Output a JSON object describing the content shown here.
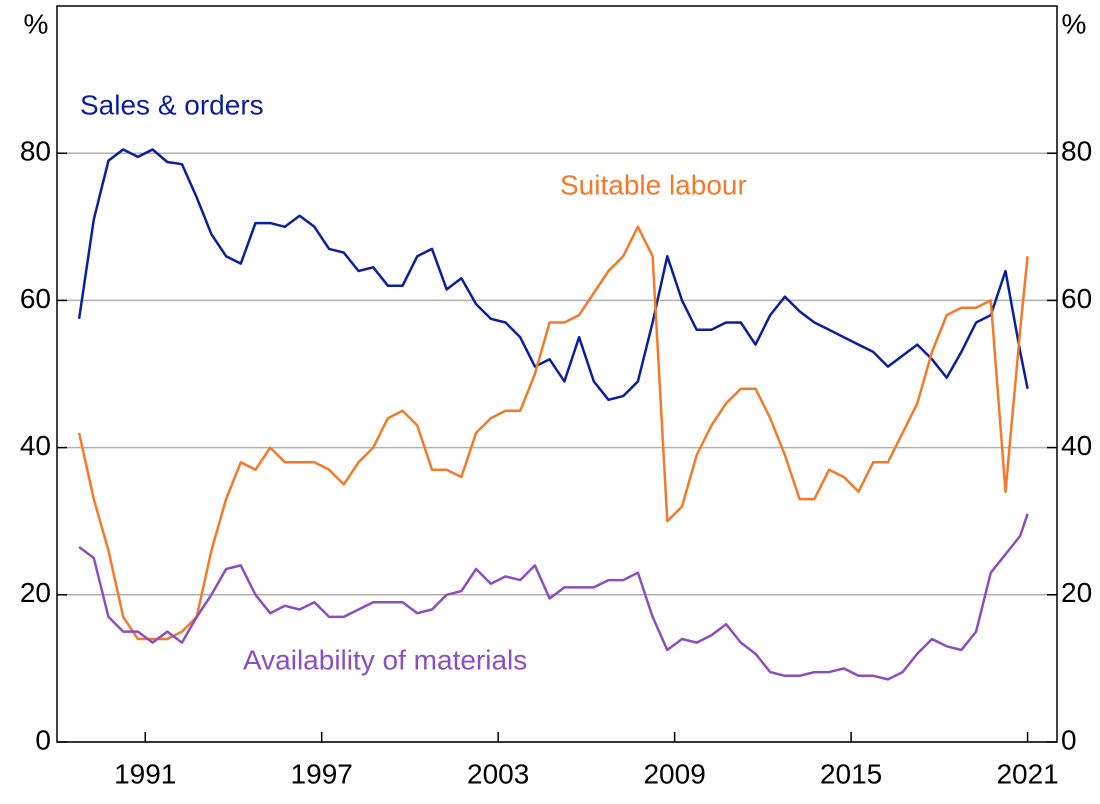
{
  "chart_data": {
    "type": "line",
    "y_label": "%",
    "y2_label": "%",
    "x": [
      1988.75,
      1989.25,
      1989.75,
      1990.25,
      1990.75,
      1991.25,
      1991.75,
      1992.25,
      1992.75,
      1993.25,
      1993.75,
      1994.25,
      1994.75,
      1995.25,
      1995.75,
      1996.25,
      1996.75,
      1997.25,
      1997.75,
      1998.25,
      1998.75,
      1999.25,
      1999.75,
      2000.25,
      2000.75,
      2001.25,
      2001.75,
      2002.25,
      2002.75,
      2003.25,
      2003.75,
      2004.25,
      2004.75,
      2005.25,
      2005.75,
      2006.25,
      2006.75,
      2007.25,
      2007.75,
      2008.25,
      2008.75,
      2009.25,
      2009.75,
      2010.25,
      2010.75,
      2011.25,
      2011.75,
      2012.25,
      2012.75,
      2013.25,
      2013.75,
      2014.25,
      2014.75,
      2015.25,
      2015.75,
      2016.25,
      2016.75,
      2017.25,
      2017.75,
      2018.25,
      2018.75,
      2019.25,
      2019.75,
      2020.25,
      2020.75,
      2021.0
    ],
    "series": [
      {
        "name": "Sales & orders",
        "color": "#0a1f9e",
        "values": [
          57.5,
          71,
          79,
          80.5,
          79.5,
          80.5,
          78.8,
          78.5,
          74,
          69,
          66,
          65,
          70.5,
          70.5,
          70,
          71.5,
          70,
          67,
          66.5,
          64,
          64.5,
          62,
          62,
          66,
          67,
          61.5,
          63,
          59.5,
          57.5,
          57,
          55,
          51,
          52,
          49,
          55,
          49,
          46.5,
          47,
          49,
          57,
          66,
          60,
          56,
          56,
          57,
          57,
          54,
          58,
          60.5,
          58.5,
          57,
          56,
          55,
          54,
          53,
          51,
          52.5,
          54,
          52,
          49.5,
          53,
          57,
          58,
          64,
          53,
          48
        ]
      },
      {
        "name": "Suitable labour",
        "color": "#f47a2a",
        "values": [
          42,
          33,
          26,
          17,
          14,
          14,
          14,
          15,
          17,
          26,
          33,
          38,
          37,
          40,
          38,
          38,
          38,
          37,
          35,
          38,
          40,
          44,
          45,
          43,
          37,
          37,
          36,
          42,
          44,
          45,
          45,
          50,
          57,
          57,
          58,
          61,
          64,
          66,
          70,
          66,
          30,
          32,
          39,
          43,
          46,
          48,
          48,
          44,
          39,
          33,
          33,
          37,
          36,
          34,
          38,
          38,
          42,
          46,
          53,
          58,
          59,
          59,
          60,
          34,
          56,
          66
        ]
      },
      {
        "name": "Availability of materials",
        "color": "#8a4fbf",
        "values": [
          26.5,
          25,
          17,
          15,
          15,
          13.5,
          15,
          13.5,
          17,
          20,
          23.5,
          24,
          20,
          17.5,
          18.5,
          18,
          19,
          17,
          17,
          18,
          19,
          19,
          19,
          17.5,
          18,
          20,
          20.5,
          23.5,
          21.5,
          22.5,
          22,
          24,
          19.5,
          21,
          21,
          21,
          22,
          22,
          23,
          17,
          12.5,
          14,
          13.5,
          14.5,
          16,
          13.5,
          12,
          9.5,
          9,
          9,
          9.5,
          9.5,
          10,
          9,
          9,
          8.5,
          9.5,
          12,
          14,
          13,
          12.5,
          15,
          23,
          25.5,
          28,
          31
        ]
      }
    ],
    "xlim": [
      1988,
      2022
    ],
    "xticks": [
      1991,
      1997,
      2003,
      2009,
      2015,
      2021
    ],
    "ylim": [
      0,
      100
    ],
    "yticks": [
      0,
      20,
      40,
      60,
      80
    ],
    "grid": true
  }
}
